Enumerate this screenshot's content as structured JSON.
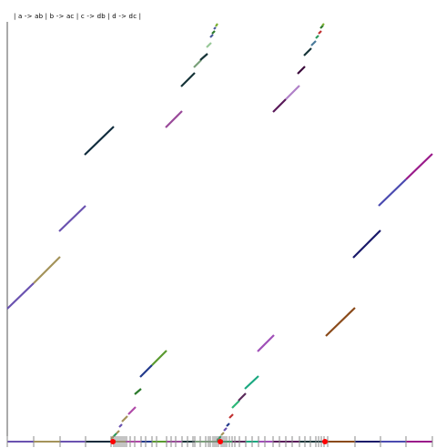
{
  "title": "| a -> ab | b -> ac | c -> db | d -> dc |",
  "axis_color": "#555555",
  "marker_color": "#ff0000",
  "segments": [
    {
      "x1": 8,
      "y1": 339,
      "x2": 37,
      "y2": 311,
      "color": "#6a52b0"
    },
    {
      "x1": 37,
      "y1": 311,
      "x2": 66,
      "y2": 282,
      "color": "#a4935a"
    },
    {
      "x1": 65,
      "y1": 254,
      "x2": 94,
      "y2": 226,
      "color": "#6a52b0"
    },
    {
      "x1": 93,
      "y1": 170,
      "x2": 125,
      "y2": 139,
      "color": "#0f2b3c"
    },
    {
      "x1": 122,
      "y1": 482,
      "x2": 125,
      "y2": 479,
      "color": "#a4935a"
    },
    {
      "x1": 125,
      "y1": 479,
      "x2": 128,
      "y2": 476,
      "color": "#2c9a5e"
    },
    {
      "x1": 128,
      "y1": 476,
      "x2": 131,
      "y2": 473,
      "color": "#a4935a"
    },
    {
      "x1": 131,
      "y1": 469,
      "x2": 134,
      "y2": 466,
      "color": "#6a52b0"
    },
    {
      "x1": 134,
      "y1": 463,
      "x2": 140,
      "y2": 457,
      "color": "#a4935a"
    },
    {
      "x1": 141,
      "y1": 455,
      "x2": 149,
      "y2": 447,
      "color": "#b04aa8"
    },
    {
      "x1": 148,
      "y1": 433,
      "x2": 155,
      "y2": 427,
      "color": "#2c7a2c"
    },
    {
      "x1": 154,
      "y1": 414,
      "x2": 167,
      "y2": 401,
      "color": "#233a8c"
    },
    {
      "x1": 167,
      "y1": 401,
      "x2": 183,
      "y2": 385,
      "color": "#5a9a30"
    },
    {
      "x1": 182,
      "y1": 140,
      "x2": 200,
      "y2": 122,
      "color": "#9a4a9a"
    },
    {
      "x1": 199,
      "y1": 95,
      "x2": 214,
      "y2": 80,
      "color": "#163438"
    },
    {
      "x1": 213,
      "y1": 74,
      "x2": 221,
      "y2": 66,
      "color": "#7aa07a"
    },
    {
      "x1": 220,
      "y1": 66,
      "x2": 228,
      "y2": 59,
      "color": "#163438"
    },
    {
      "x1": 227,
      "y1": 52,
      "x2": 232,
      "y2": 47,
      "color": "#98c898"
    },
    {
      "x1": 231,
      "y1": 41,
      "x2": 234,
      "y2": 38,
      "color": "#4a5a9a"
    },
    {
      "x1": 233,
      "y1": 37,
      "x2": 236,
      "y2": 34,
      "color": "#2c7a2c"
    },
    {
      "x1": 235,
      "y1": 32,
      "x2": 237,
      "y2": 30,
      "color": "#4a5a9a"
    },
    {
      "x1": 237,
      "y1": 29,
      "x2": 239,
      "y2": 26,
      "color": "#7ab030"
    },
    {
      "x1": 238,
      "y1": 484,
      "x2": 243,
      "y2": 479,
      "color": "#2c9a5e"
    },
    {
      "x1": 243,
      "y1": 478,
      "x2": 246,
      "y2": 475,
      "color": "#a4935a"
    },
    {
      "x1": 246,
      "y1": 473,
      "x2": 249,
      "y2": 470,
      "color": "#6a52b0"
    },
    {
      "x1": 249,
      "y1": 468,
      "x2": 252,
      "y2": 465,
      "color": "#233a8c"
    },
    {
      "x1": 252,
      "y1": 459,
      "x2": 256,
      "y2": 455,
      "color": "#c03030"
    },
    {
      "x1": 255,
      "y1": 448,
      "x2": 263,
      "y2": 440,
      "color": "#2cb878"
    },
    {
      "x1": 262,
      "y1": 440,
      "x2": 270,
      "y2": 432,
      "color": "#5a2a5a"
    },
    {
      "x1": 269,
      "y1": 427,
      "x2": 284,
      "y2": 413,
      "color": "#1aa880"
    },
    {
      "x1": 283,
      "y1": 386,
      "x2": 301,
      "y2": 368,
      "color": "#a050b8"
    },
    {
      "x1": 300,
      "y1": 123,
      "x2": 314,
      "y2": 109,
      "color": "#5a1a5a"
    },
    {
      "x1": 314,
      "y1": 109,
      "x2": 329,
      "y2": 94,
      "color": "#b080c8"
    },
    {
      "x1": 327,
      "y1": 81,
      "x2": 335,
      "y2": 73,
      "color": "#3a0a3a"
    },
    {
      "x1": 334,
      "y1": 61,
      "x2": 342,
      "y2": 53,
      "color": "#163438"
    },
    {
      "x1": 342,
      "y1": 50,
      "x2": 347,
      "y2": 45,
      "color": "#4a7a9a"
    },
    {
      "x1": 347,
      "y1": 42,
      "x2": 350,
      "y2": 39,
      "color": "#2c9a5e"
    },
    {
      "x1": 350,
      "y1": 37,
      "x2": 353,
      "y2": 34,
      "color": "#c03030"
    },
    {
      "x1": 352,
      "y1": 31,
      "x2": 355,
      "y2": 28,
      "color": "#2c7a2c"
    },
    {
      "x1": 354,
      "y1": 28,
      "x2": 356,
      "y2": 26,
      "color": "#7ab030"
    },
    {
      "x1": 358,
      "y1": 369,
      "x2": 390,
      "y2": 338,
      "color": "#8a4a1a"
    },
    {
      "x1": 388,
      "y1": 283,
      "x2": 418,
      "y2": 253,
      "color": "#1a1a6a"
    },
    {
      "x1": 416,
      "y1": 226,
      "x2": 446,
      "y2": 197,
      "color": "#4a4ab0"
    },
    {
      "x1": 446,
      "y1": 197,
      "x2": 475,
      "y2": 169,
      "color": "#9a1a8a"
    }
  ],
  "baseline": [
    {
      "x1": 8,
      "x2": 37,
      "color": "#6a52b0"
    },
    {
      "x1": 37,
      "x2": 66,
      "color": "#a4935a"
    },
    {
      "x1": 66,
      "x2": 94,
      "color": "#6a52b0"
    },
    {
      "x1": 94,
      "x2": 122,
      "color": "#0f2b3c"
    },
    {
      "x1": 122,
      "x2": 138,
      "color": "#a4935a"
    },
    {
      "x1": 138,
      "x2": 155,
      "color": "#b04aa8"
    },
    {
      "x1": 155,
      "x2": 167,
      "color": "#233a8c"
    },
    {
      "x1": 167,
      "x2": 183,
      "color": "#5a9a30"
    },
    {
      "x1": 183,
      "x2": 200,
      "color": "#9a4a9a"
    },
    {
      "x1": 200,
      "x2": 214,
      "color": "#163438"
    },
    {
      "x1": 214,
      "x2": 238,
      "color": "#7aa07a"
    },
    {
      "x1": 238,
      "x2": 255,
      "color": "#2c9a5e"
    },
    {
      "x1": 255,
      "x2": 270,
      "color": "#5a2a5a"
    },
    {
      "x1": 270,
      "x2": 284,
      "color": "#1aa880"
    },
    {
      "x1": 284,
      "x2": 300,
      "color": "#a050b8"
    },
    {
      "x1": 300,
      "x2": 329,
      "color": "#5a1a5a"
    },
    {
      "x1": 329,
      "x2": 356,
      "color": "#163438"
    },
    {
      "x1": 356,
      "x2": 390,
      "color": "#8a4a1a"
    },
    {
      "x1": 390,
      "x2": 418,
      "color": "#1a1a6a"
    },
    {
      "x1": 418,
      "x2": 446,
      "color": "#4a4ab0"
    },
    {
      "x1": 446,
      "x2": 475,
      "color": "#9a1a8a"
    }
  ],
  "ticks": [
    8,
    37,
    66,
    94,
    122,
    125,
    127,
    129,
    131,
    133,
    135,
    137,
    139,
    143,
    148,
    155,
    160,
    167,
    172,
    183,
    188,
    193,
    200,
    206,
    212,
    214,
    220,
    226,
    229,
    231,
    234,
    236,
    238,
    240,
    243,
    245,
    247,
    249,
    252,
    255,
    258,
    263,
    270,
    277,
    284,
    291,
    300,
    307,
    314,
    321,
    329,
    335,
    341,
    347,
    350,
    353,
    356,
    360,
    390,
    418,
    446,
    475
  ],
  "markers": [
    124,
    242,
    357
  ]
}
